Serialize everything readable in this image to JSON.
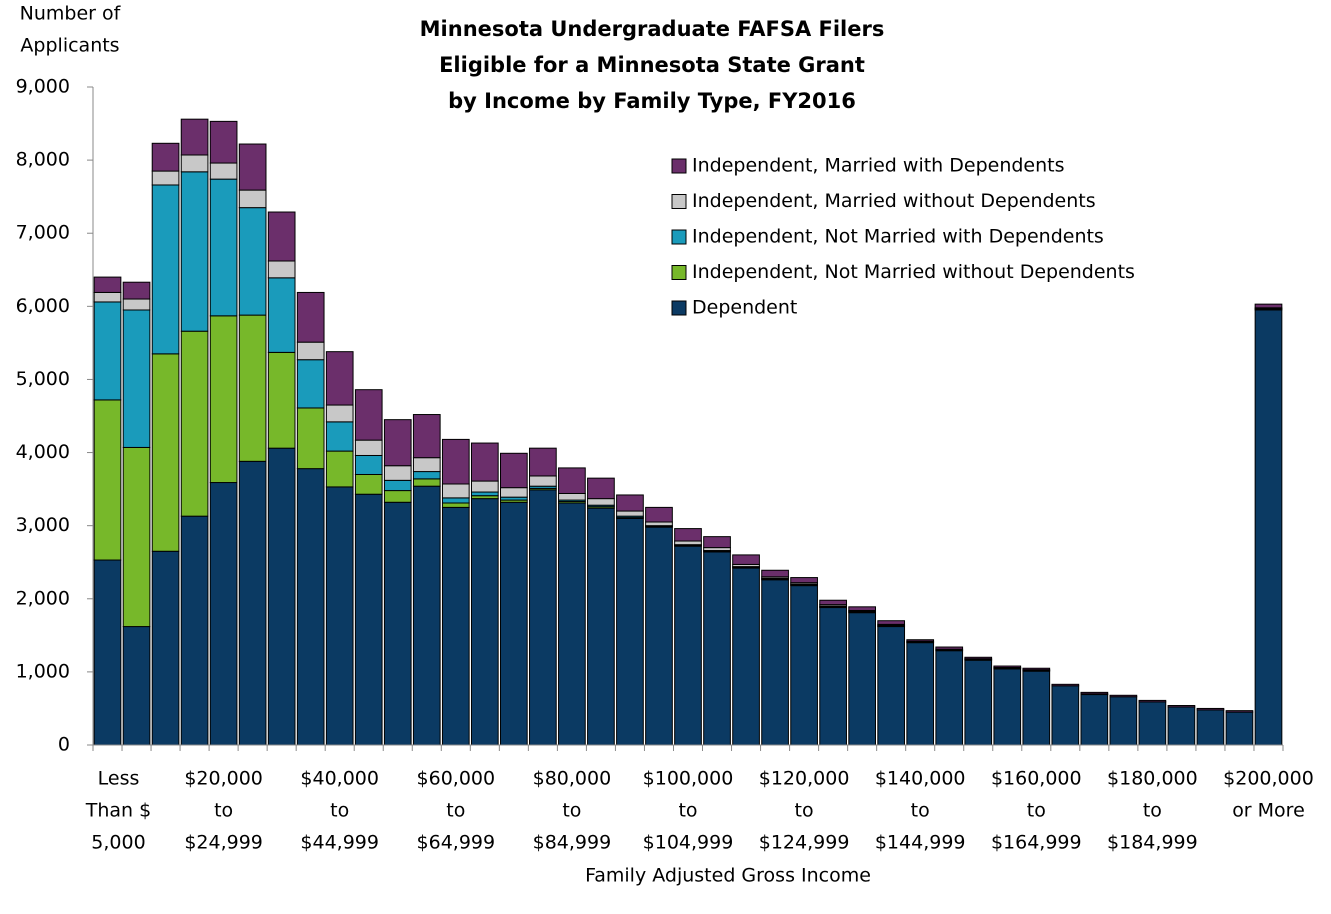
{
  "chart_data": {
    "type": "stacked_bar",
    "title": [
      "Minnesota Undergraduate FAFSA Filers",
      "Eligible for a Minnesota State Grant",
      "by Income by Family Type, FY2016"
    ],
    "y_label": [
      "Number of",
      "Applicants"
    ],
    "x_label": "Family Adjusted Gross Income",
    "categories": [
      [
        "Less",
        "Than $",
        "5,000"
      ],
      null,
      null,
      null,
      [
        "$20,000",
        "to",
        "$24,999"
      ],
      null,
      null,
      null,
      [
        "$40,000",
        "to",
        "$44,999"
      ],
      null,
      null,
      null,
      [
        "$60,000",
        "to",
        "$64,999"
      ],
      null,
      null,
      null,
      [
        "$80,000",
        "to",
        "$84,999"
      ],
      null,
      null,
      null,
      [
        "$100,000",
        "to",
        "$104,999"
      ],
      null,
      null,
      null,
      [
        "$120,000",
        "to",
        "$124,999"
      ],
      null,
      null,
      null,
      [
        "$140,000",
        "to",
        "$144,999"
      ],
      null,
      null,
      null,
      [
        "$160,000",
        "to",
        "$164,999"
      ],
      null,
      null,
      null,
      [
        "$180,000",
        "to",
        "$184,999"
      ],
      null,
      null,
      null,
      [
        "$200,000",
        "or More"
      ]
    ],
    "series": [
      {
        "name": "Dependent",
        "color": "#0b3a63",
        "values": [
          2530,
          1620,
          2650,
          3130,
          3590,
          3880,
          4060,
          3780,
          3530,
          3430,
          3320,
          3540,
          3250,
          3370,
          3320,
          3490,
          3310,
          3240,
          3100,
          2980,
          2720,
          2640,
          2420,
          2260,
          2180,
          1880,
          1810,
          1620,
          1400,
          1290,
          1160,
          1040,
          1010,
          810,
          690,
          660,
          590,
          520,
          480,
          450,
          5950
        ]
      },
      {
        "name": "Independent, Not Married without Dependents",
        "color": "#77b82a",
        "values": [
          2190,
          2450,
          2700,
          2530,
          2280,
          2000,
          1310,
          830,
          490,
          270,
          160,
          100,
          60,
          40,
          30,
          20,
          20,
          20,
          10,
          10,
          10,
          10,
          10,
          10,
          10,
          10,
          10,
          10,
          10,
          10,
          10,
          10,
          10,
          0,
          0,
          0,
          0,
          0,
          0,
          0,
          10
        ]
      },
      {
        "name": "Independent, Not Married with Dependents",
        "color": "#1a9bbb",
        "values": [
          1340,
          1880,
          2310,
          2180,
          1870,
          1470,
          1020,
          660,
          400,
          260,
          140,
          100,
          70,
          50,
          40,
          30,
          20,
          20,
          20,
          10,
          10,
          10,
          10,
          10,
          10,
          10,
          10,
          10,
          10,
          0,
          0,
          0,
          0,
          0,
          0,
          0,
          0,
          0,
          0,
          0,
          10
        ]
      },
      {
        "name": "Independent, Married without Dependents",
        "color": "#c8c8c8",
        "values": [
          130,
          150,
          190,
          230,
          220,
          240,
          230,
          240,
          230,
          210,
          200,
          190,
          190,
          150,
          130,
          140,
          90,
          90,
          70,
          50,
          50,
          40,
          30,
          20,
          20,
          20,
          10,
          10,
          0,
          10,
          10,
          10,
          10,
          0,
          10,
          0,
          0,
          0,
          0,
          0,
          10
        ]
      },
      {
        "name": "Independent, Married with Dependents",
        "color": "#6b2f6b",
        "values": [
          210,
          230,
          380,
          490,
          570,
          630,
          670,
          680,
          730,
          690,
          630,
          590,
          610,
          520,
          470,
          380,
          350,
          280,
          220,
          200,
          170,
          150,
          130,
          90,
          70,
          60,
          50,
          50,
          20,
          30,
          20,
          20,
          20,
          20,
          20,
          20,
          20,
          20,
          20,
          20,
          50
        ]
      }
    ],
    "ylim": [
      0,
      9000
    ],
    "yticks": [
      0,
      {
        "value": 1000,
        "label": "1,000"
      },
      {
        "value": 2000,
        "label": "2,000"
      },
      {
        "value": 3000,
        "label": "3,000"
      },
      {
        "value": 4000,
        "label": "4,000"
      },
      {
        "value": 5000,
        "label": "5,000"
      },
      {
        "value": 6000,
        "label": "6,000"
      },
      {
        "value": 7000,
        "label": "7,000"
      },
      {
        "value": 8000,
        "label": "8,000"
      },
      {
        "value": 9000,
        "label": "9,000"
      }
    ],
    "legend": "upper right"
  }
}
